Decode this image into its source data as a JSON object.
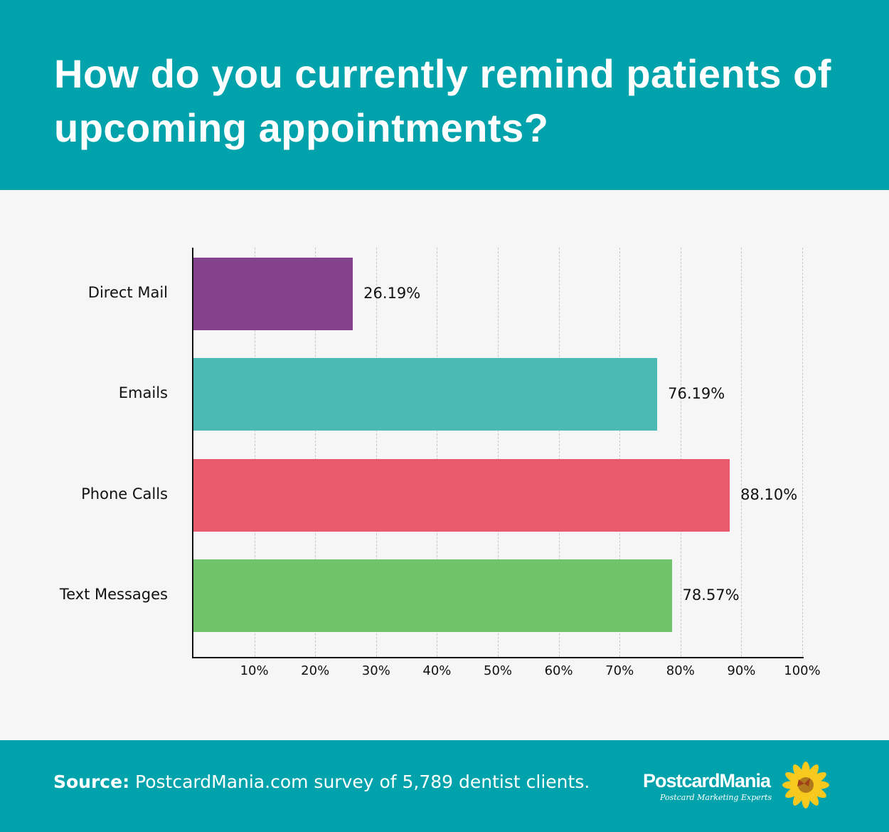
{
  "header": {
    "title": "How do you currently remind patients of upcoming appointments?",
    "background": "#00a3ab"
  },
  "chart_data": {
    "type": "bar",
    "orientation": "horizontal",
    "title": "How do you currently remind patients of upcoming appointments?",
    "categories": [
      "Direct Mail",
      "Emails",
      "Phone Calls",
      "Text Messages"
    ],
    "values": [
      26.19,
      76.19,
      88.1,
      78.57
    ],
    "value_labels": [
      "26.19%",
      "76.19%",
      "88.10%",
      "78.57%"
    ],
    "colors": [
      "#84418c",
      "#4bbab5",
      "#e95a6d",
      "#70c369"
    ],
    "xlabel": "",
    "ylabel": "",
    "xlim": [
      0,
      100
    ],
    "x_ticks": [
      "10%",
      "20%",
      "30%",
      "40%",
      "50%",
      "60%",
      "70%",
      "80%",
      "90%",
      "100%"
    ],
    "grid": "vertical dashed",
    "legend": "none"
  },
  "footer": {
    "source_label": "Source:",
    "source_text": "PostcardMania.com survey of 5,789 dentist clients.",
    "logo_name": "PostcardMania",
    "logo_tagline": "Postcard Marketing Experts"
  }
}
